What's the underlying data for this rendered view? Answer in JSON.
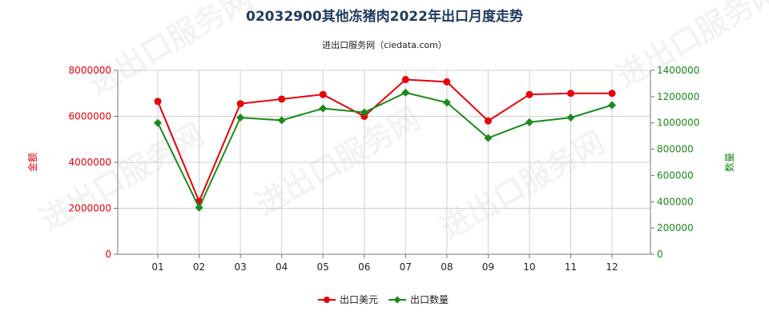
{
  "chart_data": {
    "type": "line",
    "title": "02032900其他冻猪肉2022年出口月度走势",
    "subtitle": "进出口服务网（ciedata.com）",
    "watermark": "进出口服务网",
    "categories": [
      "01",
      "02",
      "03",
      "04",
      "05",
      "06",
      "07",
      "08",
      "09",
      "10",
      "11",
      "12"
    ],
    "y_left": {
      "label": "金额",
      "ticks": [
        "0",
        "2000000",
        "4000000",
        "6000000",
        "8000000"
      ],
      "ylim": [
        0,
        8000000
      ],
      "color": "#e8000b"
    },
    "y_right": {
      "label": "数量",
      "ticks": [
        "0",
        "200000",
        "400000",
        "600000",
        "800000",
        "1000000",
        "1200000",
        "1400000"
      ],
      "ylim": [
        0,
        1400000
      ],
      "color": "#1a8a1a"
    },
    "series": [
      {
        "name": "出口美元",
        "axis": "left",
        "color": "#e8000b",
        "marker": "circle",
        "values": [
          6650000,
          2300000,
          6550000,
          6750000,
          6950000,
          6000000,
          7600000,
          7500000,
          5800000,
          6950000,
          7000000,
          7000000
        ]
      },
      {
        "name": "出口数量",
        "axis": "right",
        "color": "#1a8a1a",
        "marker": "diamond",
        "values": [
          1000000,
          355000,
          1040000,
          1020000,
          1110000,
          1080000,
          1230000,
          1155000,
          885000,
          1005000,
          1040000,
          1135000
        ]
      }
    ],
    "grid": true,
    "legend_position": "bottom"
  }
}
